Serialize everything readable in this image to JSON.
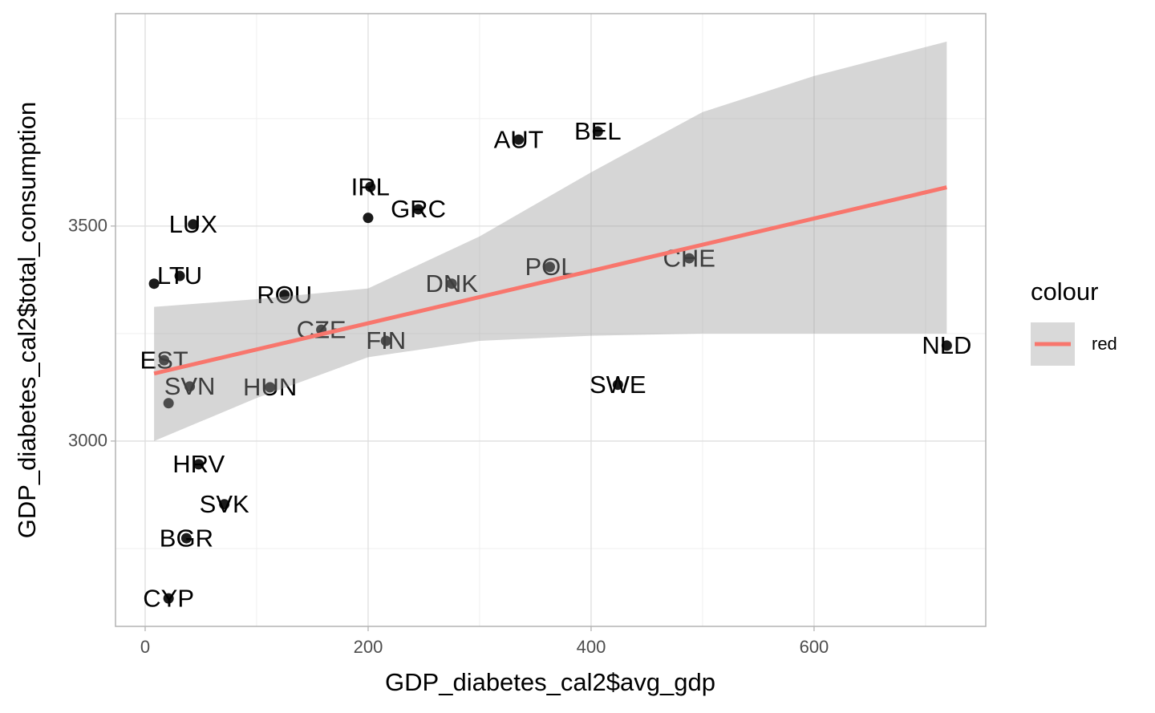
{
  "chart_data": {
    "type": "scatter",
    "xlabel": "GDP_diabetes_cal2$avg_gdp",
    "ylabel": "GDP_diabetes_cal2$total_consumption",
    "labels": [
      "AUT",
      "BEL",
      "IRL",
      "GRC",
      null,
      "LUX",
      "LTU",
      null,
      "ROU",
      "DNK",
      "POL",
      "CHE",
      "CZE",
      "FIN",
      "EST",
      "SVN",
      "HUN",
      null,
      "SWE",
      "NLD",
      "HRV",
      "SVK",
      "BGR",
      "CYP"
    ],
    "x": [
      335,
      406,
      202,
      245,
      200,
      43,
      31,
      8,
      125,
      275,
      363,
      488,
      158,
      216,
      17,
      40,
      112,
      21,
      424,
      719,
      48,
      71,
      37,
      21
    ],
    "y": [
      3701,
      3720,
      3591,
      3539,
      3519,
      3504,
      3384,
      3366,
      3340,
      3366,
      3405,
      3425,
      3259,
      3233,
      3188,
      3127,
      3125,
      3088,
      3131,
      3222,
      2946,
      2853,
      2774,
      2634
    ],
    "point_color": "#1a1a1a",
    "fit": {
      "name": "red",
      "color": "#F8766D",
      "x": [
        8,
        719
      ],
      "y": [
        3157,
        3590
      ]
    },
    "band": {
      "color": "#999999",
      "x": [
        8,
        100,
        200,
        300,
        400,
        500,
        600,
        719
      ],
      "lower": [
        3000,
        3100,
        3195,
        3233,
        3245,
        3250,
        3250,
        3250
      ],
      "upper": [
        3312,
        3330,
        3355,
        3476,
        3625,
        3765,
        3849,
        3929
      ]
    },
    "legend_title": "colour",
    "xlim": [
      -26.6,
      754
    ],
    "ylim": [
      2569,
      3994
    ],
    "xticks": [
      0,
      200,
      400,
      600
    ],
    "yticks": [
      3000,
      3500
    ],
    "x_minor_grid": [
      100,
      300,
      500,
      700
    ],
    "y_minor_grid": [
      2750,
      3250,
      3750
    ],
    "grid": true
  }
}
